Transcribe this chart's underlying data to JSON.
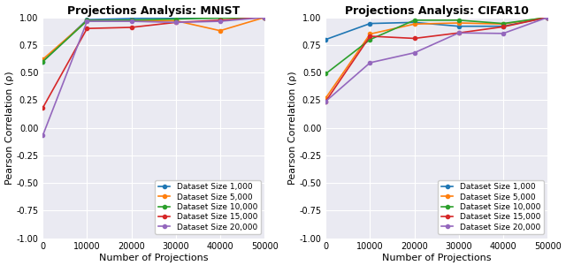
{
  "mnist": {
    "title": "Projections Analysis: MNIST",
    "x": [
      0,
      10000,
      20000,
      30000,
      40000,
      50000
    ],
    "series": {
      "Dataset Size 1,000": [
        0.6,
        0.98,
        0.99,
        0.995,
        0.995,
        1.0
      ],
      "Dataset Size 5,000": [
        0.62,
        0.97,
        0.97,
        0.97,
        0.88,
        1.0
      ],
      "Dataset Size 10,000": [
        0.6,
        0.97,
        0.975,
        0.985,
        0.995,
        1.0
      ],
      "Dataset Size 15,000": [
        0.18,
        0.9,
        0.91,
        0.955,
        0.975,
        1.0
      ],
      "Dataset Size 20,000": [
        -0.07,
        0.965,
        0.965,
        0.955,
        0.965,
        1.0
      ]
    }
  },
  "cifar10": {
    "title": "Projections Analysis: CIFAR10",
    "x": [
      0,
      10000,
      20000,
      30000,
      40000,
      50000
    ],
    "series": {
      "Dataset Size 1,000": [
        0.8,
        0.945,
        0.955,
        0.92,
        0.92,
        1.0
      ],
      "Dataset Size 5,000": [
        0.27,
        0.85,
        0.94,
        0.95,
        0.94,
        1.0
      ],
      "Dataset Size 10,000": [
        0.49,
        0.8,
        0.975,
        0.975,
        0.945,
        1.0
      ],
      "Dataset Size 15,000": [
        0.24,
        0.83,
        0.81,
        0.86,
        0.915,
        1.0
      ],
      "Dataset Size 20,000": [
        0.24,
        0.59,
        0.68,
        0.86,
        0.855,
        1.0
      ]
    }
  },
  "colors": {
    "Dataset Size 1,000": "#1f77b4",
    "Dataset Size 5,000": "#ff7f0e",
    "Dataset Size 10,000": "#2ca02c",
    "Dataset Size 15,000": "#d62728",
    "Dataset Size 20,000": "#9467bd"
  },
  "xlabel": "Number of Projections",
  "ylabel": "Pearson Correlation (ρ)",
  "ylim": [
    -1.0,
    1.0
  ],
  "xlim": [
    0,
    50000
  ],
  "yticks": [
    -1.0,
    -0.75,
    -0.5,
    -0.25,
    0.0,
    0.25,
    0.5,
    0.75,
    1.0
  ],
  "xticks": [
    0,
    10000,
    20000,
    30000,
    40000,
    50000
  ],
  "xtick_labels": [
    "0",
    "10000",
    "20000",
    "30000",
    "40000",
    "50000"
  ],
  "ytick_labels": [
    "-1.00",
    "-0.75",
    "-0.50",
    "-0.25",
    "0.00",
    "0.25",
    "0.50",
    "0.75",
    "1.00"
  ],
  "background_color": "#eaeaf2",
  "grid_color": "#ffffff",
  "title_fontsize": 9,
  "label_fontsize": 8,
  "tick_fontsize": 7,
  "legend_fontsize": 6.5,
  "marker": "o",
  "marker_size": 3,
  "line_width": 1.2
}
